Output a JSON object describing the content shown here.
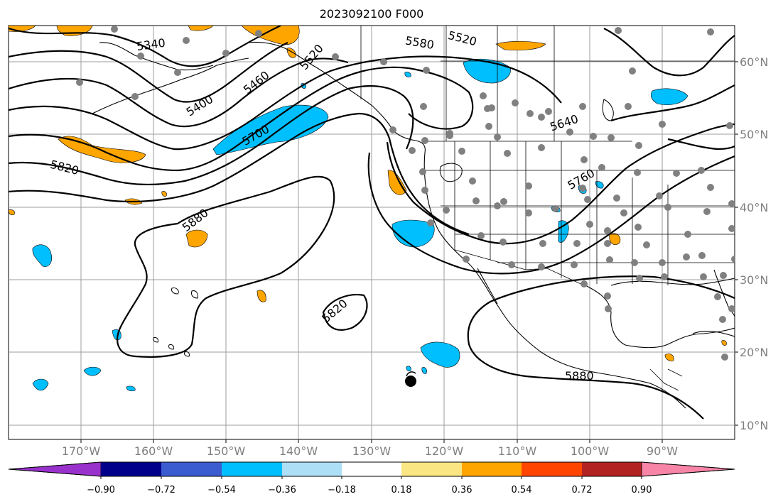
{
  "title": "2023092100 F000",
  "map": {
    "lon_ticks": [
      "170°W",
      "160°W",
      "150°W",
      "140°W",
      "130°W",
      "120°W",
      "110°W",
      "100°W",
      "90°W"
    ],
    "lat_ticks": [
      "60°N",
      "50°N",
      "40°N",
      "30°N",
      "20°N",
      "10°N"
    ],
    "contour_labels": [
      "5340",
      "5400",
      "5460",
      "5520",
      "5520",
      "5580",
      "5640",
      "5700",
      "5760",
      "5820",
      "5880",
      "5820",
      "5880"
    ]
  },
  "colorbar": {
    "colors": [
      "#9932CC",
      "#00008B",
      "#3B5BD0",
      "#00BFFF",
      "#ADDFF7",
      "#FFFFFF",
      "#FBE684",
      "#FFA500",
      "#FF4500",
      "#B22222",
      "#F885A8"
    ],
    "tick_labels": [
      "−0.90",
      "−0.72",
      "−0.54",
      "−0.36",
      "−0.18",
      "0.18",
      "0.36",
      "0.54",
      "0.72",
      "0.90"
    ]
  },
  "colors": {
    "negative_anomaly": "#00BFFF",
    "positive_anomaly": "#FFA500",
    "station_dot": "#808080",
    "marker": "#000000"
  }
}
